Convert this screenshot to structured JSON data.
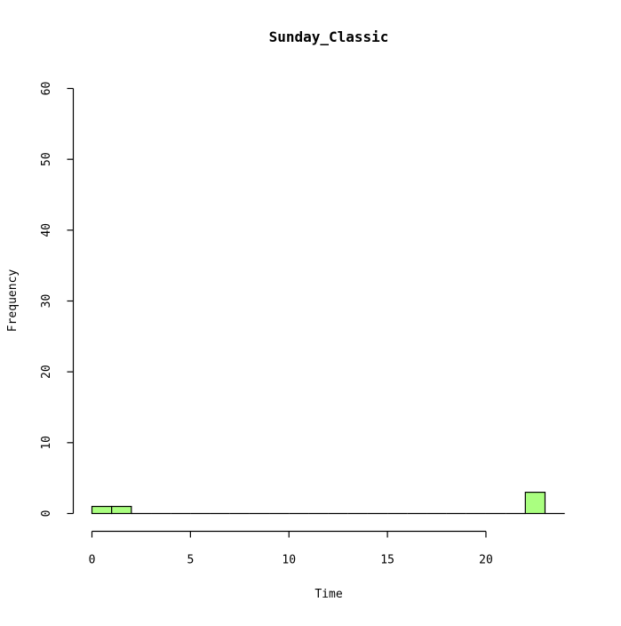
{
  "chart_data": {
    "type": "bar",
    "subtype": "histogram",
    "title": "Sunday_Classic",
    "xlabel": "Time",
    "ylabel": "Frequency",
    "bins": [
      {
        "x0": 0,
        "x1": 1,
        "count": 1
      },
      {
        "x0": 1,
        "x1": 2,
        "count": 1
      },
      {
        "x0": 2,
        "x1": 3,
        "count": 0
      },
      {
        "x0": 3,
        "x1": 4,
        "count": 0
      },
      {
        "x0": 4,
        "x1": 5,
        "count": 0
      },
      {
        "x0": 5,
        "x1": 6,
        "count": 0
      },
      {
        "x0": 6,
        "x1": 7,
        "count": 0
      },
      {
        "x0": 7,
        "x1": 8,
        "count": 0
      },
      {
        "x0": 8,
        "x1": 9,
        "count": 0
      },
      {
        "x0": 9,
        "x1": 10,
        "count": 0
      },
      {
        "x0": 10,
        "x1": 11,
        "count": 0
      },
      {
        "x0": 11,
        "x1": 12,
        "count": 0
      },
      {
        "x0": 12,
        "x1": 13,
        "count": 0
      },
      {
        "x0": 13,
        "x1": 14,
        "count": 0
      },
      {
        "x0": 14,
        "x1": 15,
        "count": 0
      },
      {
        "x0": 15,
        "x1": 16,
        "count": 0
      },
      {
        "x0": 16,
        "x1": 17,
        "count": 0
      },
      {
        "x0": 17,
        "x1": 18,
        "count": 0
      },
      {
        "x0": 18,
        "x1": 19,
        "count": 0
      },
      {
        "x0": 19,
        "x1": 20,
        "count": 0
      },
      {
        "x0": 20,
        "x1": 21,
        "count": 0
      },
      {
        "x0": 21,
        "x1": 22,
        "count": 0
      },
      {
        "x0": 22,
        "x1": 23,
        "count": 3
      },
      {
        "x0": 23,
        "x1": 24,
        "count": 0
      }
    ],
    "xlim": [
      0,
      24
    ],
    "ylim": [
      0,
      60
    ],
    "x_ticks": [
      0,
      5,
      10,
      15,
      20
    ],
    "y_ticks": [
      0,
      10,
      20,
      30,
      40,
      50,
      60
    ],
    "bar_fill": "#aaff80",
    "bar_stroke": "#000000",
    "grid": false
  }
}
